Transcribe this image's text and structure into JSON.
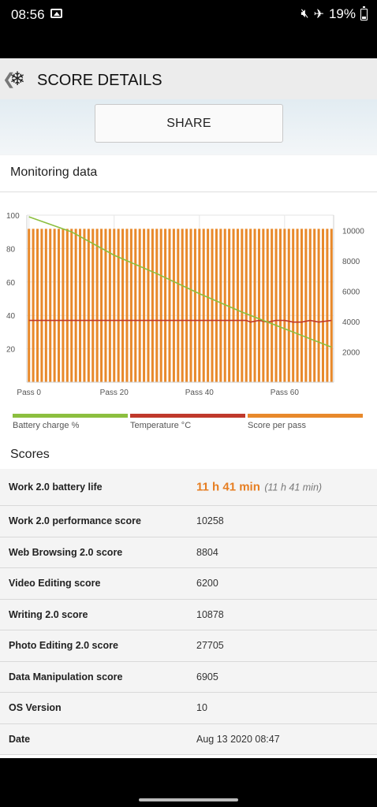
{
  "status_bar": {
    "time": "08:56",
    "battery_text": "19%",
    "icons": [
      "gallery-icon",
      "mute-icon",
      "airplane-icon",
      "battery-icon"
    ]
  },
  "header": {
    "title": "SCORE DETAILS",
    "back_icon": "chevron-left-icon",
    "logo_icon": "snowflake-icon"
  },
  "share": {
    "label": "SHARE"
  },
  "monitoring": {
    "title": "Monitoring data"
  },
  "chart_data": {
    "type": "bar",
    "x_ticks": [
      "Pass 0",
      "Pass 20",
      "Pass 40",
      "Pass 60"
    ],
    "x_tick_values": [
      0,
      20,
      40,
      60
    ],
    "y_left_ticks": [
      "100",
      "80",
      "60",
      "40",
      "20"
    ],
    "y_right_ticks": [
      "10000",
      "8000",
      "6000",
      "4000",
      "2000"
    ],
    "ylim_left": [
      0,
      100
    ],
    "ylim_right": [
      0,
      11000
    ],
    "series": [
      {
        "name": "Battery charge %",
        "type": "line",
        "axis": "left",
        "x": [
          0,
          10,
          20,
          30,
          40,
          50,
          60,
          71
        ],
        "y": [
          99,
          90,
          76,
          65,
          53,
          42,
          32,
          21
        ]
      },
      {
        "name": "Temperature °C",
        "type": "line",
        "axis": "left",
        "x": [
          0,
          51,
          52,
          54,
          56,
          58,
          60,
          62,
          64,
          66,
          68,
          71
        ],
        "y": [
          37,
          37,
          36,
          37,
          36,
          37,
          37,
          36,
          36,
          37,
          36,
          37
        ]
      },
      {
        "name": "Score per pass",
        "type": "bar",
        "axis": "right",
        "passes": 72,
        "value": 10100
      }
    ],
    "colors": {
      "battery": "#8cbf3f",
      "temperature": "#c0392b",
      "score": "#e8892b"
    },
    "grid": true
  },
  "legend": [
    "Battery charge %",
    "Temperature °C",
    "Score per pass"
  ],
  "scores": {
    "title": "Scores",
    "rows": [
      {
        "label": "Work 2.0 battery life",
        "value": "11 h 41 min",
        "sub": "(11 h 41 min)"
      },
      {
        "label": "Work 2.0 performance score",
        "value": "10258"
      },
      {
        "label": "Web Browsing 2.0 score",
        "value": "8804"
      },
      {
        "label": "Video Editing score",
        "value": "6200"
      },
      {
        "label": "Writing 2.0 score",
        "value": "10878"
      },
      {
        "label": "Photo Editing 2.0 score",
        "value": "27705"
      },
      {
        "label": "Data Manipulation score",
        "value": "6905"
      },
      {
        "label": "OS Version",
        "value": "10"
      },
      {
        "label": "Date",
        "value": "Aug 13 2020 08:47"
      }
    ]
  }
}
